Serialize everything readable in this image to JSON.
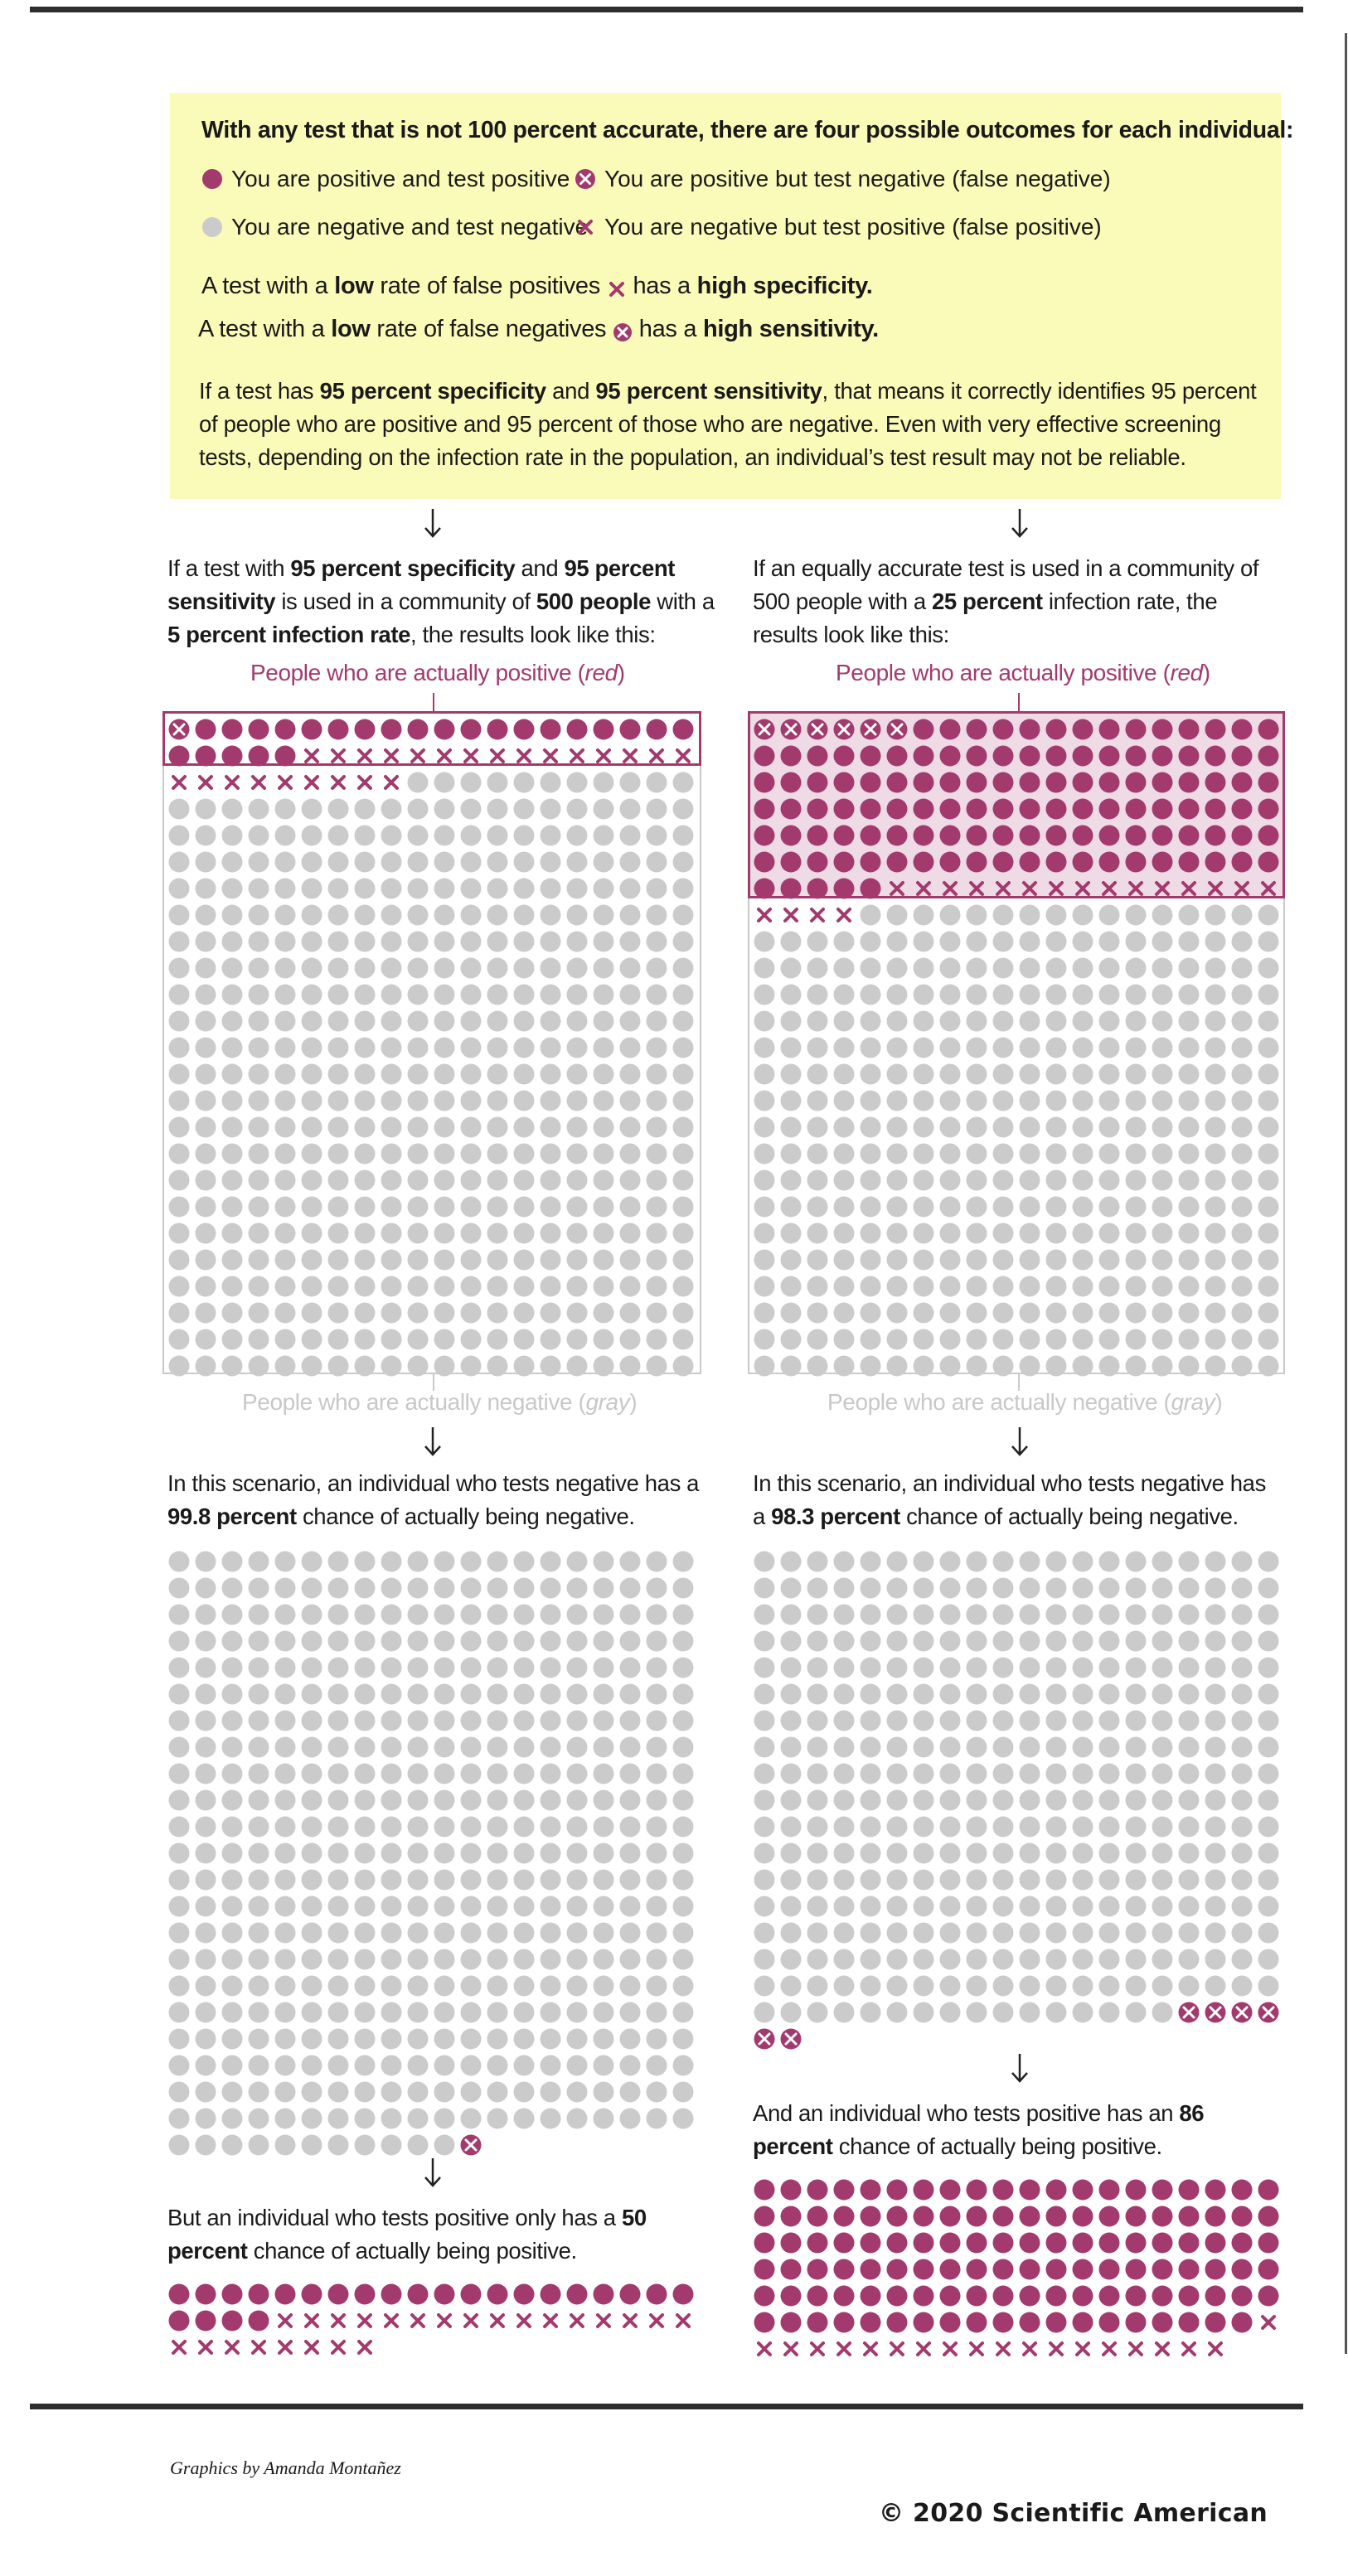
{
  "intro": {
    "title": "With any test that is not 100 percent accurate, there are four possible outcomes for each individual:",
    "legend": {
      "tp": "You are positive and test positive",
      "fn": "You are positive but test negative (false negative)",
      "tn": "You are negative and test negative",
      "fp": "You are negative but test positive (false positive)"
    },
    "spec_line": {
      "a": "A test with a ",
      "b": "low",
      "c": " rate of false positives ",
      "d": " has a ",
      "e": "high specificity."
    },
    "sens_line": {
      "a": "A test with a ",
      "b": "low",
      "c": " rate of false negatives ",
      "d": " has a ",
      "e": "high sensitivity."
    },
    "para": {
      "a": "If a test has ",
      "b": "95 percent specificity",
      "c": " and ",
      "d": "95 percent sensitivity",
      "e": ", that means it correctly identifies 95 percent of people who are positive and 95 percent of those who are negative. Even with very effective screening tests, depending on the infection rate in the population, an individual’s test result may not be reliable."
    }
  },
  "left": {
    "caption": {
      "a": "If a test with ",
      "b": "95 percent specificity",
      "c": " and ",
      "d": "95 percent sensitivity",
      "e": " is used in a community of ",
      "f": "500 people",
      "g": " with a ",
      "h": "5 percent infection rate",
      "i": ", the results look like this:"
    },
    "pos_label": "People who are actually positive (",
    "pos_label_it": "red",
    "pos_label_end": ")",
    "neg_label": "People who are actually negative (",
    "neg_label_it": "gray",
    "neg_label_end": ")",
    "neg_caption": {
      "a": "In this scenario, an individual who tests negative has a ",
      "b": "99.8 percent",
      "c": " chance of actually being negative."
    },
    "pos_caption": {
      "a": "But an individual who tests positive only has a ",
      "b": "50 percent",
      "c": " chance of actually being positive."
    }
  },
  "right": {
    "caption": {
      "a": "If an equally accurate test is used in a community of 500 people with a ",
      "b": "25 percent",
      "c": " infection rate, the results look like this:"
    },
    "pos_label": "People who are actually positive (",
    "pos_label_it": "red",
    "pos_label_end": ")",
    "neg_label": "People who are actually negative (",
    "neg_label_it": "gray",
    "neg_label_end": ")",
    "neg_caption": {
      "a": "In this scenario, an individual who tests negative has a ",
      "b": "98.3 percent",
      "c": " chance of actually being negative."
    },
    "pos_caption": {
      "a": "And an individual who tests positive has an ",
      "b": "86 percent",
      "c": " chance of actually being positive."
    }
  },
  "credit": "Graphics by Amanda Montañez",
  "copyright": "© 2020 Scientific American",
  "colors": {
    "positive": "#a33a6e",
    "negative": "#cbcbcb",
    "cross": "#ffffff",
    "box": "#fafab9"
  },
  "chart_data": [
    {
      "type": "table",
      "name": "5 percent infection rate, all 500 people",
      "columns": 20,
      "rows": 25,
      "cells": [
        {
          "kind": "false_negative",
          "count": 1
        },
        {
          "kind": "true_positive",
          "count": 24
        },
        {
          "kind": "false_positive",
          "count": 24
        },
        {
          "kind": "true_negative",
          "count": 451
        }
      ]
    },
    {
      "type": "table",
      "name": "25 percent infection rate, all 500 people",
      "columns": 20,
      "rows": 25,
      "cells": [
        {
          "kind": "false_negative",
          "count": 6
        },
        {
          "kind": "true_positive",
          "count": 119
        },
        {
          "kind": "false_positive",
          "count": 19
        },
        {
          "kind": "true_negative",
          "count": 356
        }
      ]
    },
    {
      "type": "table",
      "name": "5 percent: tested negative",
      "columns": 20,
      "cells": [
        {
          "kind": "true_negative",
          "count": 451
        },
        {
          "kind": "false_negative",
          "count": 1
        }
      ]
    },
    {
      "type": "table",
      "name": "5 percent: tested positive",
      "columns": 20,
      "cells": [
        {
          "kind": "true_positive",
          "count": 24
        },
        {
          "kind": "false_positive",
          "count": 24
        }
      ]
    },
    {
      "type": "table",
      "name": "25 percent: tested negative",
      "columns": 20,
      "cells": [
        {
          "kind": "true_negative",
          "count": 356
        },
        {
          "kind": "false_negative",
          "count": 6
        }
      ]
    },
    {
      "type": "table",
      "name": "25 percent: tested positive",
      "columns": 20,
      "cells": [
        {
          "kind": "true_positive",
          "count": 119
        },
        {
          "kind": "false_positive",
          "count": 19
        }
      ]
    }
  ]
}
